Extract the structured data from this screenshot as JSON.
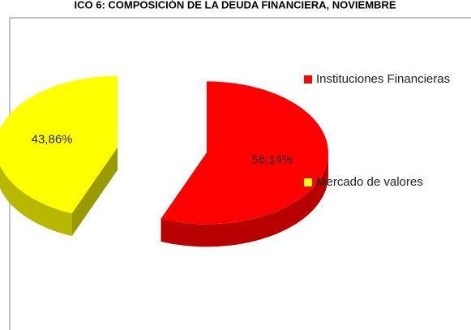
{
  "chart_data": {
    "type": "pie3d",
    "title": "ICO 6: COMPOSICIÓN DE LA DEUDA FINANCIERA, NOVIEMBRE",
    "categories": [
      "Instituciones Financieras",
      "Mercado de valores"
    ],
    "values": [
      56.14,
      43.86
    ],
    "value_labels": [
      "56,14%",
      "43,86%"
    ],
    "colors": [
      "#ff0000",
      "#ffff00"
    ],
    "legend": "right"
  }
}
